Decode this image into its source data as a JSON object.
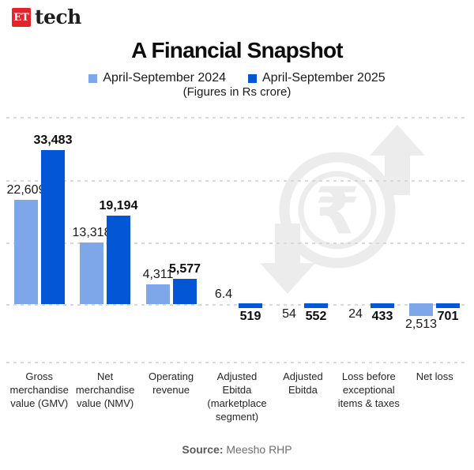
{
  "header": {
    "logo_et": "ET",
    "logo_text": "tech"
  },
  "title": "A Financial Snapshot",
  "subtitle": "(Figures in Rs crore)",
  "footer": {
    "source_label": "Source:",
    "source_value": "Meesho RHP"
  },
  "colors": {
    "series_2024": "#7DA7E8",
    "series_2025": "#0356D6",
    "logo_red": "#E5232B",
    "gridline": "#D8D8D8",
    "watermark": "#ECECEC"
  },
  "chart_data": {
    "type": "bar",
    "title": "A Financial Snapshot",
    "unit_note": "(Figures in Rs crore)",
    "legend_position": "top",
    "grid": "dashed-horizontal",
    "ylim": [
      0,
      33483
    ],
    "categories": [
      "Gross merchandise value (GMV)",
      "Net merchandise value (NMV)",
      "Operating revenue",
      "Adjusted Ebitda (marketplace segment)",
      "Adjusted Ebitda",
      "Loss before exceptional items & taxes",
      "Net loss"
    ],
    "bar_direction": [
      "up",
      "up",
      "up",
      "down",
      "down",
      "down",
      "down"
    ],
    "series": [
      {
        "name": "April-September 2024",
        "color": "#7DA7E8",
        "bold_labels": false,
        "values": [
          22609,
          13318,
          4311,
          6.4,
          54,
          24,
          2513
        ],
        "labels": [
          "22,609",
          "13,318",
          "4,311",
          "6.4",
          "54",
          "24",
          "2,513"
        ],
        "label_pos": [
          "above",
          "above",
          "above",
          "above",
          "below",
          "below",
          "below"
        ]
      },
      {
        "name": "April-September 2025",
        "color": "#0356D6",
        "bold_labels": true,
        "values": [
          33483,
          19194,
          5577,
          519,
          552,
          433,
          701
        ],
        "labels": [
          "33,483",
          "19,194",
          "5,577",
          "519",
          "552",
          "433",
          "701"
        ],
        "label_pos": [
          "above",
          "above",
          "above",
          "below",
          "below",
          "below",
          "below"
        ]
      }
    ],
    "watermark_icons": [
      "rupee-coin-icon",
      "up-arrow-icon",
      "down-arrow-icon"
    ]
  }
}
